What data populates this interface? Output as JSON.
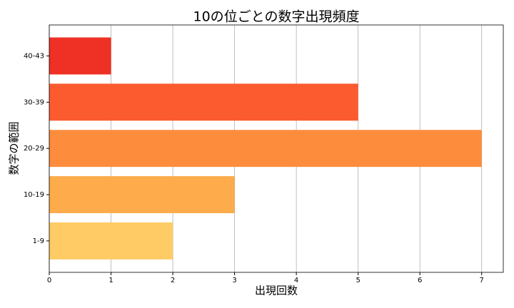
{
  "chart_data": {
    "type": "barh",
    "title": "10の位ごとの数字出現頻度",
    "xlabel": "出現回数",
    "ylabel": "数字の範囲",
    "categories": [
      "1-9",
      "10-19",
      "20-29",
      "30-39",
      "40-43"
    ],
    "values": [
      2,
      3,
      7,
      5,
      1
    ],
    "colors": [
      "#fecb64",
      "#fdab4b",
      "#fd8d3c",
      "#fc5b2f",
      "#ee3124"
    ],
    "xlim": [
      0,
      7.35
    ],
    "xticks": [
      0,
      1,
      2,
      3,
      4,
      5,
      6,
      7
    ],
    "grid": true
  }
}
